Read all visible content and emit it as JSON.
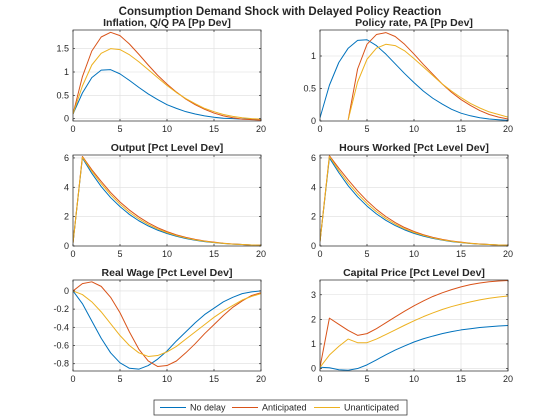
{
  "figure": {
    "title": "Consumption Demand Shock with Delayed Policy Reaction"
  },
  "series_colors": {
    "No delay": "#0072BD",
    "Anticipated": "#D95319",
    "Unanticipated": "#EDB120"
  },
  "legend": {
    "placement": "bottom-center",
    "entries": [
      "No delay",
      "Anticipated",
      "Unanticipated"
    ]
  },
  "chart_data": [
    {
      "type": "line",
      "title": "Inflation, Q/Q PA [Pp Dev]",
      "xlim": [
        0,
        20
      ],
      "ylim": [
        -0.05,
        1.9
      ],
      "xticks": [
        0,
        5,
        10,
        15,
        20
      ],
      "yticks": [
        0,
        0.5,
        1,
        1.5
      ],
      "ytick_labels": [
        "0",
        "0.5",
        "1",
        "1.5"
      ],
      "grid": true,
      "x": [
        0,
        1,
        2,
        3,
        4,
        5,
        6,
        7,
        8,
        9,
        10,
        11,
        12,
        13,
        14,
        15,
        16,
        17,
        18,
        19,
        20
      ],
      "series": [
        {
          "name": "No delay",
          "values": [
            0.1,
            0.55,
            0.88,
            1.04,
            1.05,
            0.96,
            0.82,
            0.67,
            0.53,
            0.41,
            0.3,
            0.22,
            0.15,
            0.1,
            0.06,
            0.03,
            0.01,
            0,
            -0.01,
            -0.01,
            -0.02
          ]
        },
        {
          "name": "Anticipated",
          "values": [
            0.1,
            0.9,
            1.45,
            1.75,
            1.85,
            1.78,
            1.6,
            1.38,
            1.15,
            0.93,
            0.74,
            0.57,
            0.42,
            0.3,
            0.2,
            0.12,
            0.06,
            0.02,
            -0.01,
            -0.02,
            -0.03
          ]
        },
        {
          "name": "Unanticipated",
          "values": [
            0.1,
            0.7,
            1.15,
            1.4,
            1.5,
            1.48,
            1.37,
            1.22,
            1.05,
            0.88,
            0.71,
            0.56,
            0.43,
            0.32,
            0.22,
            0.15,
            0.09,
            0.05,
            0.02,
            0,
            -0.01
          ]
        }
      ]
    },
    {
      "type": "line",
      "title": "Policy rate, PA [Pp Dev]",
      "xlim": [
        0,
        20
      ],
      "ylim": [
        0,
        1.4
      ],
      "xticks": [
        0,
        5,
        10,
        15,
        20
      ],
      "yticks": [
        0,
        0.5,
        1
      ],
      "ytick_labels": [
        "0",
        "0.5",
        "1"
      ],
      "grid": true,
      "x": [
        0,
        1,
        2,
        3,
        4,
        5,
        6,
        7,
        8,
        9,
        10,
        11,
        12,
        13,
        14,
        15,
        16,
        17,
        18,
        19,
        20
      ],
      "series": [
        {
          "name": "No delay",
          "values": [
            0.05,
            0.55,
            0.9,
            1.12,
            1.24,
            1.25,
            1.16,
            1.03,
            0.88,
            0.73,
            0.59,
            0.46,
            0.35,
            0.26,
            0.18,
            0.12,
            0.08,
            0.05,
            0.03,
            0.02,
            0.01
          ]
        },
        {
          "name": "Anticipated",
          "values": [
            null,
            null,
            null,
            0.02,
            0.8,
            1.18,
            1.33,
            1.36,
            1.3,
            1.18,
            1.03,
            0.87,
            0.72,
            0.57,
            0.44,
            0.33,
            0.24,
            0.16,
            0.1,
            0.06,
            0.03
          ]
        },
        {
          "name": "Unanticipated",
          "values": [
            null,
            null,
            null,
            0.02,
            0.6,
            0.95,
            1.12,
            1.18,
            1.16,
            1.08,
            0.96,
            0.83,
            0.7,
            0.57,
            0.46,
            0.36,
            0.27,
            0.2,
            0.14,
            0.1,
            0.06
          ]
        }
      ]
    },
    {
      "type": "line",
      "title": "Output [Pct Level Dev]",
      "xlim": [
        0,
        20
      ],
      "ylim": [
        0,
        6.2
      ],
      "xticks": [
        0,
        5,
        10,
        15,
        20
      ],
      "yticks": [
        0,
        2,
        4,
        6
      ],
      "ytick_labels": [
        "0",
        "2",
        "4",
        "6"
      ],
      "grid": true,
      "x": [
        0,
        1,
        2,
        3,
        4,
        5,
        6,
        7,
        8,
        9,
        10,
        11,
        12,
        13,
        14,
        15,
        16,
        17,
        18,
        19,
        20
      ],
      "series": [
        {
          "name": "No delay",
          "values": [
            0.2,
            6,
            4.95,
            4.05,
            3.3,
            2.68,
            2.15,
            1.72,
            1.37,
            1.08,
            0.85,
            0.66,
            0.51,
            0.39,
            0.3,
            0.23,
            0.17,
            0.13,
            0.1,
            0.07,
            0.05
          ]
        },
        {
          "name": "Anticipated",
          "values": [
            0.2,
            6.1,
            5.2,
            4.4,
            3.65,
            3,
            2.45,
            1.98,
            1.58,
            1.25,
            0.98,
            0.76,
            0.59,
            0.45,
            0.34,
            0.26,
            0.19,
            0.14,
            0.1,
            0.07,
            0.05
          ]
        },
        {
          "name": "Unanticipated",
          "values": [
            0.2,
            6.05,
            5.1,
            4.25,
            3.5,
            2.85,
            2.3,
            1.85,
            1.47,
            1.16,
            0.91,
            0.71,
            0.55,
            0.42,
            0.32,
            0.24,
            0.18,
            0.13,
            0.1,
            0.07,
            0.05
          ]
        }
      ]
    },
    {
      "type": "line",
      "title": "Hours Worked [Pct Level Dev]",
      "xlim": [
        0,
        20
      ],
      "ylim": [
        0,
        6.2
      ],
      "xticks": [
        0,
        5,
        10,
        15,
        20
      ],
      "yticks": [
        0,
        2,
        4,
        6
      ],
      "ytick_labels": [
        "0",
        "2",
        "4",
        "6"
      ],
      "grid": true,
      "x": [
        0,
        1,
        2,
        3,
        4,
        5,
        6,
        7,
        8,
        9,
        10,
        11,
        12,
        13,
        14,
        15,
        16,
        17,
        18,
        19,
        20
      ],
      "series": [
        {
          "name": "No delay",
          "values": [
            0.3,
            6,
            5,
            4.1,
            3.35,
            2.72,
            2.19,
            1.75,
            1.39,
            1.1,
            0.86,
            0.67,
            0.52,
            0.4,
            0.3,
            0.23,
            0.17,
            0.13,
            0.1,
            0.07,
            0.05
          ]
        },
        {
          "name": "Anticipated",
          "values": [
            0.3,
            6.15,
            5.3,
            4.5,
            3.75,
            3.08,
            2.5,
            2.01,
            1.6,
            1.26,
            0.99,
            0.77,
            0.59,
            0.45,
            0.34,
            0.26,
            0.19,
            0.14,
            0.1,
            0.07,
            0.05
          ]
        },
        {
          "name": "Unanticipated",
          "values": [
            0.3,
            6.1,
            5.15,
            4.3,
            3.55,
            2.9,
            2.34,
            1.88,
            1.49,
            1.17,
            0.92,
            0.72,
            0.55,
            0.42,
            0.32,
            0.24,
            0.18,
            0.13,
            0.1,
            0.07,
            0.05
          ]
        }
      ]
    },
    {
      "type": "line",
      "title": "Real Wage [Pct Level Dev]",
      "xlim": [
        0,
        20
      ],
      "ylim": [
        -0.88,
        0.12
      ],
      "xticks": [
        0,
        5,
        10,
        15,
        20
      ],
      "yticks": [
        -0.8,
        -0.6,
        -0.4,
        -0.2,
        0
      ],
      "ytick_labels": [
        "-0.8",
        "-0.6",
        "-0.4",
        "-0.2",
        "0"
      ],
      "grid": true,
      "x": [
        0,
        1,
        2,
        3,
        4,
        5,
        6,
        7,
        8,
        9,
        10,
        11,
        12,
        13,
        14,
        15,
        16,
        17,
        18,
        19,
        20
      ],
      "series": [
        {
          "name": "No delay",
          "values": [
            0,
            -0.14,
            -0.33,
            -0.52,
            -0.68,
            -0.79,
            -0.85,
            -0.86,
            -0.82,
            -0.75,
            -0.66,
            -0.55,
            -0.45,
            -0.35,
            -0.26,
            -0.19,
            -0.12,
            -0.07,
            -0.03,
            -0.01,
            0
          ]
        },
        {
          "name": "Anticipated",
          "values": [
            0,
            0.08,
            0.1,
            0.05,
            -0.07,
            -0.24,
            -0.45,
            -0.64,
            -0.77,
            -0.83,
            -0.82,
            -0.77,
            -0.68,
            -0.58,
            -0.47,
            -0.37,
            -0.27,
            -0.18,
            -0.11,
            -0.05,
            -0.02
          ]
        },
        {
          "name": "Unanticipated",
          "values": [
            0,
            -0.04,
            -0.12,
            -0.23,
            -0.36,
            -0.49,
            -0.6,
            -0.68,
            -0.72,
            -0.71,
            -0.67,
            -0.61,
            -0.53,
            -0.45,
            -0.37,
            -0.29,
            -0.22,
            -0.16,
            -0.1,
            -0.06,
            -0.03
          ]
        }
      ]
    },
    {
      "type": "line",
      "title": "Capital Price [Pct Level Dev]",
      "xlim": [
        0,
        20
      ],
      "ylim": [
        -0.1,
        3.6
      ],
      "xticks": [
        0,
        5,
        10,
        15,
        20
      ],
      "yticks": [
        0,
        1,
        2,
        3
      ],
      "ytick_labels": [
        "0",
        "1",
        "2",
        "3"
      ],
      "grid": true,
      "x": [
        0,
        1,
        2,
        3,
        4,
        5,
        6,
        7,
        8,
        9,
        10,
        11,
        12,
        13,
        14,
        15,
        16,
        17,
        18,
        19,
        20
      ],
      "series": [
        {
          "name": "No delay",
          "values": [
            0.05,
            0.03,
            -0.05,
            -0.07,
            0,
            0.15,
            0.35,
            0.56,
            0.75,
            0.92,
            1.08,
            1.21,
            1.32,
            1.42,
            1.5,
            1.57,
            1.62,
            1.67,
            1.7,
            1.73,
            1.75
          ]
        },
        {
          "name": "Anticipated",
          "values": [
            0.05,
            2.05,
            1.8,
            1.55,
            1.35,
            1.42,
            1.62,
            1.86,
            2.1,
            2.33,
            2.55,
            2.75,
            2.93,
            3.08,
            3.21,
            3.32,
            3.41,
            3.48,
            3.53,
            3.56,
            3.58
          ]
        },
        {
          "name": "Unanticipated",
          "values": [
            0.05,
            0.55,
            0.9,
            1.2,
            1.05,
            1.05,
            1.2,
            1.38,
            1.57,
            1.76,
            1.94,
            2.11,
            2.26,
            2.4,
            2.52,
            2.62,
            2.71,
            2.79,
            2.86,
            2.91,
            2.95
          ]
        }
      ]
    }
  ]
}
